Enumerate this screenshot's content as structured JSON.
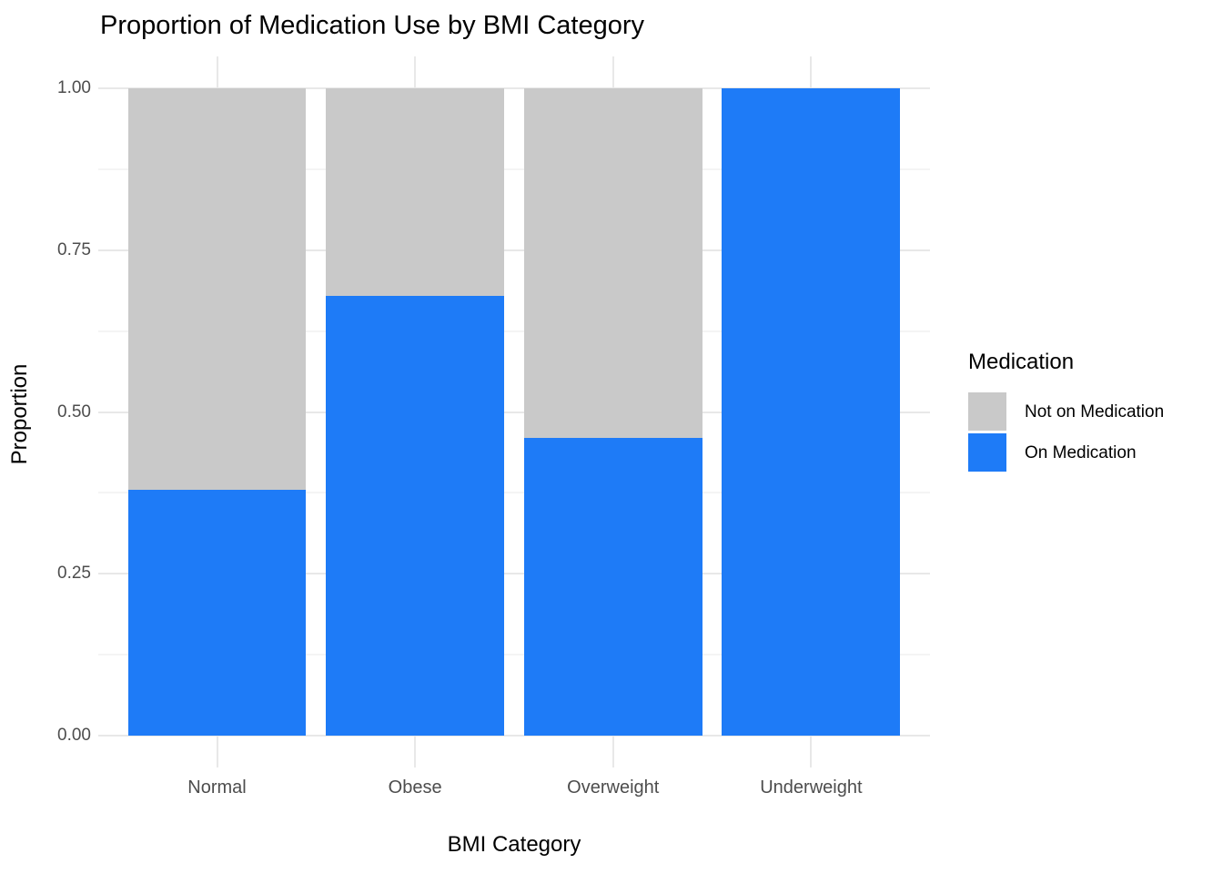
{
  "figure": {
    "background_color": "#FFFFFF"
  },
  "chart_data": {
    "type": "bar",
    "stacked": true,
    "orientation": "vertical",
    "title": "Proportion of Medication Use by BMI Category",
    "xlabel": "BMI Category",
    "ylabel": "Proportion",
    "categories": [
      "Normal",
      "Obese",
      "Overweight",
      "Underweight"
    ],
    "series": [
      {
        "name": "On Medication",
        "color": "#1E7BF7",
        "values": [
          0.38,
          0.68,
          0.46,
          1.0
        ]
      },
      {
        "name": "Not on Medication",
        "color": "#C9C9C9",
        "values": [
          0.62,
          0.32,
          0.54,
          0.0
        ]
      }
    ],
    "ylim": [
      0,
      1
    ],
    "yticks": [
      0,
      0.25,
      0.5,
      0.75,
      1
    ],
    "ytick_labels": [
      "0.00",
      "0.25",
      "0.50",
      "0.75",
      "1.00"
    ],
    "minor_gridlines": [
      0.125,
      0.375,
      0.625,
      0.875
    ],
    "grid": true,
    "grid_major_color": "#E8E8E8",
    "grid_minor_color": "#F4F4F4",
    "axis_text_color": "#4D4D4D",
    "bar_width_fraction": 0.9,
    "legend": {
      "title": "Medication",
      "position": "right",
      "items": [
        {
          "label": "Not on Medication",
          "color": "#C9C9C9"
        },
        {
          "label": "On Medication",
          "color": "#1E7BF7"
        }
      ]
    }
  }
}
